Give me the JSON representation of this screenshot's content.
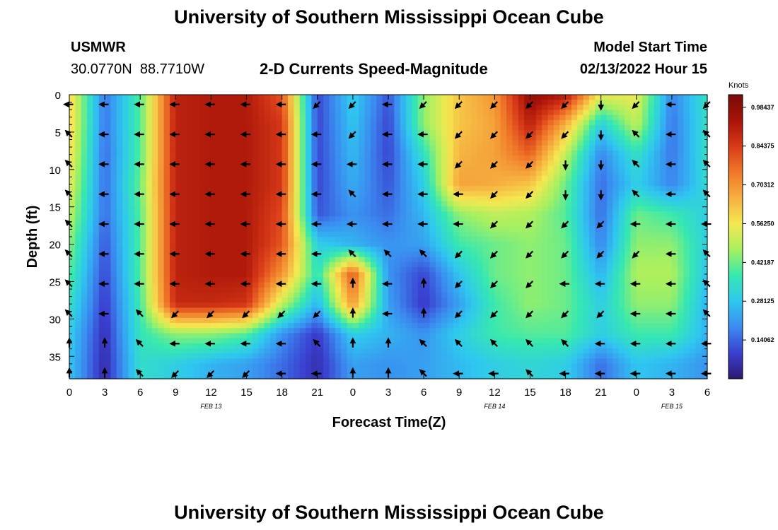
{
  "title": "University of Southern Mississippi Ocean Cube",
  "title_repeat": "University of Southern Mississippi Ocean Cube",
  "station": {
    "name": "USMWR",
    "lat": "30.0770N",
    "lon": "88.7710W"
  },
  "subtitle": "2-D Currents Speed-Magnitude",
  "model_start": {
    "label": "Model Start Time",
    "value": "02/13/2022 Hour 15"
  },
  "colorbar": {
    "units": "Knots",
    "ticks": [
      "0.98437",
      "0.84375",
      "0.70312",
      "0.56250",
      "0.42187",
      "0.28125",
      "0.14062"
    ],
    "min": 0.0,
    "max": 1.03,
    "colors": [
      "#2b1a70",
      "#3a3fd0",
      "#3b8bf0",
      "#2fc7f0",
      "#36e8b0",
      "#a6f060",
      "#f5e850",
      "#f6b040",
      "#f07828",
      "#d83a18",
      "#a81308",
      "#7a0a0a"
    ]
  },
  "chart_data": {
    "type": "heatmap",
    "title": "2-D Currents Speed-Magnitude",
    "xlabel": "Forecast Time(Z)",
    "ylabel": "Depth (ft)",
    "x_tick_labels": [
      "0",
      "3",
      "6",
      "9",
      "12",
      "15",
      "18",
      "21",
      "0",
      "3",
      "6",
      "9",
      "12",
      "15",
      "18",
      "21",
      "0",
      "3",
      "6"
    ],
    "date_labels": [
      "FEB 13",
      "FEB 14",
      "FEB 15"
    ],
    "y_tick_labels": [
      "0",
      "5",
      "10",
      "15",
      "20",
      "25",
      "30",
      "35"
    ],
    "xlim_hours": [
      0,
      54
    ],
    "ylim_ft": [
      0,
      38
    ],
    "depths_ft": [
      0,
      4,
      8,
      12,
      16,
      20,
      24,
      28,
      32,
      36
    ],
    "hours": [
      0,
      3,
      6,
      9,
      12,
      15,
      18,
      21,
      24,
      27,
      30,
      33,
      36,
      39,
      42,
      45,
      48,
      51,
      54
    ],
    "speed_knots": [
      [
        0.6,
        0.16,
        0.4,
        0.9,
        0.92,
        0.92,
        0.8,
        0.1,
        0.3,
        0.12,
        0.45,
        0.62,
        0.7,
        0.98,
        0.92,
        0.55,
        0.55,
        0.18,
        0.35
      ],
      [
        0.6,
        0.16,
        0.4,
        0.9,
        0.92,
        0.92,
        0.85,
        0.1,
        0.28,
        0.1,
        0.45,
        0.62,
        0.68,
        0.9,
        0.65,
        0.3,
        0.5,
        0.16,
        0.35
      ],
      [
        0.58,
        0.15,
        0.4,
        0.9,
        0.92,
        0.92,
        0.85,
        0.1,
        0.26,
        0.1,
        0.35,
        0.65,
        0.68,
        0.78,
        0.5,
        0.18,
        0.35,
        0.16,
        0.35
      ],
      [
        0.55,
        0.15,
        0.42,
        0.9,
        0.92,
        0.92,
        0.85,
        0.1,
        0.24,
        0.12,
        0.3,
        0.68,
        0.66,
        0.62,
        0.42,
        0.15,
        0.3,
        0.18,
        0.33
      ],
      [
        0.5,
        0.15,
        0.4,
        0.9,
        0.92,
        0.92,
        0.82,
        0.12,
        0.2,
        0.15,
        0.26,
        0.45,
        0.5,
        0.48,
        0.4,
        0.15,
        0.42,
        0.38,
        0.3
      ],
      [
        0.45,
        0.12,
        0.4,
        0.9,
        0.92,
        0.92,
        0.8,
        0.3,
        0.25,
        0.2,
        0.22,
        0.38,
        0.42,
        0.45,
        0.42,
        0.18,
        0.45,
        0.45,
        0.3
      ],
      [
        0.4,
        0.1,
        0.4,
        0.9,
        0.92,
        0.92,
        0.7,
        0.35,
        0.8,
        0.2,
        0.1,
        0.28,
        0.42,
        0.45,
        0.42,
        0.25,
        0.48,
        0.48,
        0.28
      ],
      [
        0.35,
        0.08,
        0.38,
        0.88,
        0.88,
        0.86,
        0.5,
        0.25,
        0.7,
        0.22,
        0.08,
        0.22,
        0.38,
        0.45,
        0.42,
        0.3,
        0.45,
        0.45,
        0.25
      ],
      [
        0.3,
        0.06,
        0.36,
        0.45,
        0.45,
        0.4,
        0.2,
        0.08,
        0.3,
        0.25,
        0.2,
        0.3,
        0.38,
        0.4,
        0.4,
        0.3,
        0.38,
        0.38,
        0.25
      ],
      [
        0.28,
        0.05,
        0.34,
        0.3,
        0.25,
        0.22,
        0.15,
        0.06,
        0.22,
        0.2,
        0.22,
        0.26,
        0.3,
        0.32,
        0.3,
        0.15,
        0.28,
        0.25,
        0.2
      ]
    ],
    "arrow_dirs_deg": [
      [
        180,
        180,
        180,
        180,
        180,
        180,
        180,
        135,
        135,
        180,
        135,
        135,
        135,
        135,
        135,
        90,
        135,
        180,
        135
      ],
      [
        225,
        180,
        180,
        180,
        180,
        180,
        180,
        180,
        135,
        180,
        180,
        135,
        135,
        135,
        135,
        90,
        225,
        180,
        225
      ],
      [
        225,
        180,
        180,
        180,
        180,
        180,
        180,
        180,
        180,
        180,
        180,
        135,
        135,
        135,
        90,
        90,
        225,
        180,
        225
      ],
      [
        225,
        180,
        180,
        180,
        180,
        180,
        180,
        180,
        225,
        180,
        180,
        180,
        135,
        135,
        90,
        90,
        225,
        180,
        225
      ],
      [
        225,
        180,
        180,
        180,
        180,
        180,
        180,
        180,
        180,
        180,
        180,
        180,
        135,
        135,
        135,
        135,
        180,
        180,
        180
      ],
      [
        225,
        180,
        180,
        180,
        180,
        180,
        180,
        180,
        225,
        225,
        225,
        135,
        135,
        135,
        135,
        135,
        135,
        180,
        225
      ],
      [
        225,
        180,
        180,
        180,
        180,
        180,
        180,
        180,
        270,
        180,
        270,
        135,
        135,
        135,
        180,
        180,
        180,
        180,
        225
      ],
      [
        225,
        180,
        225,
        135,
        135,
        135,
        135,
        135,
        270,
        180,
        270,
        135,
        135,
        135,
        135,
        135,
        180,
        180,
        225
      ],
      [
        270,
        270,
        225,
        180,
        180,
        180,
        180,
        225,
        270,
        270,
        225,
        225,
        225,
        225,
        225,
        180,
        180,
        180,
        180
      ],
      [
        270,
        270,
        225,
        135,
        135,
        135,
        180,
        180,
        270,
        270,
        225,
        180,
        180,
        225,
        180,
        180,
        180,
        180,
        180
      ]
    ]
  }
}
